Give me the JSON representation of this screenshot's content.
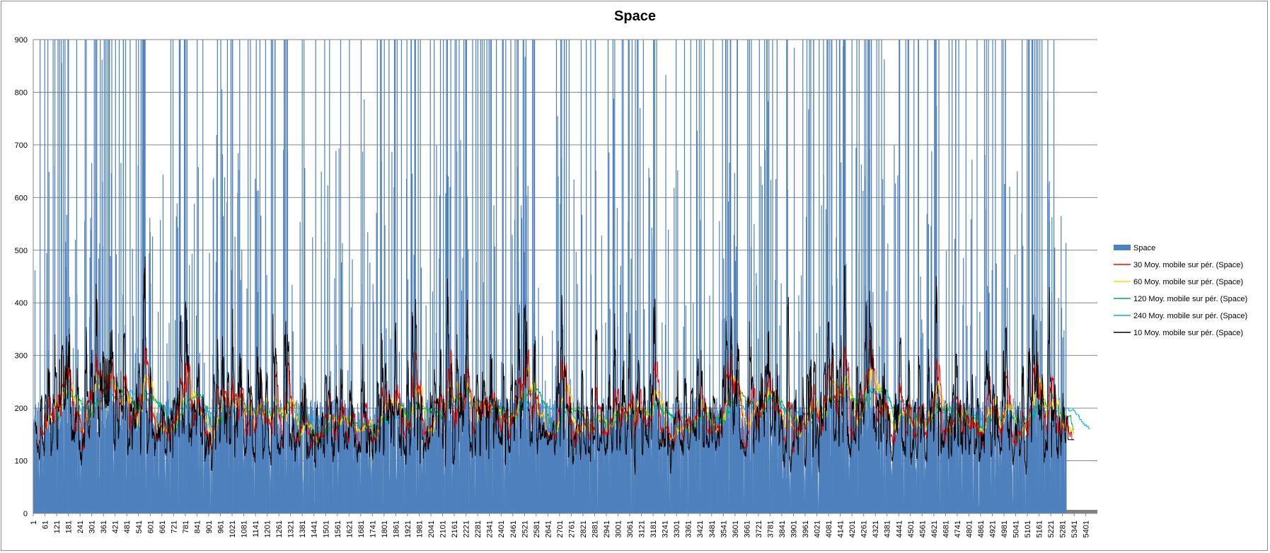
{
  "chart_data": {
    "type": "bar",
    "title": "Space",
    "ylim": [
      0,
      900
    ],
    "yticks": [
      "0",
      "100",
      "200",
      "300",
      "400",
      "500",
      "600",
      "700",
      "800",
      "900"
    ],
    "xticks": [
      "1",
      "61",
      "121",
      "181",
      "241",
      "301",
      "361",
      "421",
      "481",
      "541",
      "601",
      "661",
      "721",
      "781",
      "841",
      "901",
      "961",
      "1021",
      "1081",
      "1141",
      "1201",
      "1261",
      "1321",
      "1381",
      "1441",
      "1501",
      "1561",
      "1621",
      "1681",
      "1741",
      "1801",
      "1861",
      "1921",
      "1981",
      "2041",
      "2101",
      "2161",
      "2221",
      "2281",
      "2341",
      "2401",
      "2461",
      "2521",
      "2581",
      "2641",
      "2701",
      "2761",
      "2821",
      "2881",
      "2941",
      "3001",
      "3061",
      "3121",
      "3181",
      "3241",
      "3301",
      "3361",
      "3421",
      "3481",
      "3541",
      "3601",
      "3661",
      "3721",
      "3781",
      "3841",
      "3901",
      "3961",
      "4021",
      "4081",
      "4141",
      "4201",
      "4261",
      "4321",
      "4381",
      "4441",
      "4501",
      "4561",
      "4621",
      "4681",
      "4741",
      "4801",
      "4861",
      "4921",
      "4981",
      "5041",
      "5101",
      "5161",
      "5221",
      "5281",
      "5341",
      "5401"
    ],
    "n_points": 5460,
    "data_end": 5300,
    "grid": true,
    "legend_position": "right",
    "series": [
      {
        "name": "Space",
        "kind": "bar",
        "color": "#4f81bd"
      },
      {
        "name": "30 Moy. mobile sur pér. (Space)",
        "kind": "line",
        "color": "#ff0000",
        "window": 30
      },
      {
        "name": "60 Moy. mobile sur pér. (Space)",
        "kind": "line",
        "color": "#ffd700",
        "window": 60
      },
      {
        "name": "120 Moy. mobile sur pér. (Space)",
        "kind": "line",
        "color": "#00b050",
        "window": 120
      },
      {
        "name": "240 Moy. mobile sur pér. (Space)",
        "kind": "line",
        "color": "#00b0f0",
        "window": 240
      },
      {
        "name": "10 Moy. mobile sur pér. (Space)",
        "kind": "line",
        "color": "#000000",
        "window": 10
      }
    ]
  }
}
